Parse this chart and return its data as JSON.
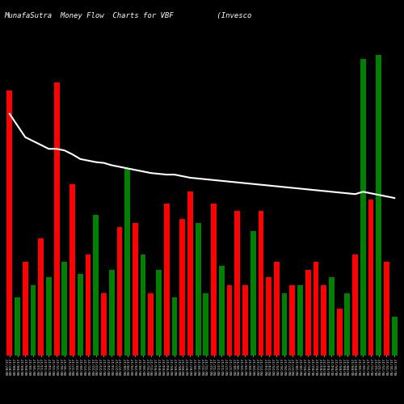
{
  "title": "MunafaSutra  Money Flow  Charts for VBF          (Invesco                                         #",
  "background_color": "#000000",
  "text_color": "#ffffff",
  "bar_width": 0.7,
  "line_color": "#ffffff",
  "categories": [
    "03/07/17\n03/07/17",
    "03/08/17\n03/08/17",
    "03/09/17\n03/09/17",
    "03/10/17\n03/10/17",
    "03/13/17\n03/13/17",
    "03/14/17\n03/14/17",
    "03/15/17\n03/15/17",
    "03/16/17\n03/16/17",
    "03/17/17\n03/17/17",
    "03/20/17\n03/20/17",
    "03/21/17\n03/21/17",
    "03/22/17\n03/22/17",
    "03/23/17\n03/23/17",
    "03/24/17\n03/24/17",
    "03/27/17\n03/27/17",
    "03/28/17\n03/28/17",
    "03/29/17\n03/29/17",
    "03/30/17\n03/30/17",
    "03/31/17\n03/31/17",
    "04/03/17\n04/03/17",
    "04/04/17\n04/04/17",
    "04/05/17\n04/05/17",
    "04/06/17\n04/06/17",
    "04/07/17\n04/07/17",
    "04/10/17\n04/10/17",
    "04/11/17\n04/11/17",
    "04/12/17\n04/12/17",
    "04/13/17\n04/13/17",
    "04/17/17\n04/17/17",
    "04/18/17\n04/18/17",
    "04/19/17\n04/19/17",
    "04/20/17\n04/20/17",
    "04/21/17\n04/21/17",
    "04/24/17\n04/24/17",
    "04/25/17\n04/25/17",
    "04/26/17\n04/26/17",
    "04/27/17\n04/27/17",
    "04/28/17\n04/28/17",
    "05/01/17\n05/01/17",
    "05/02/17\n05/02/17",
    "05/03/17\n05/03/17",
    "05/04/17\n05/04/17",
    "05/05/17\n05/05/17",
    "05/08/17\n05/08/17",
    "05/09/17\n05/09/17",
    "05/10/17\n05/10/17",
    "05/11/17\n05/11/17",
    "05/12/17\n05/12/17",
    "05/15/17\n05/15/17",
    "05/16/17\n05/16/17"
  ],
  "bar_heights": [
    340,
    75,
    120,
    90,
    150,
    100,
    350,
    120,
    220,
    105,
    130,
    180,
    80,
    110,
    165,
    240,
    170,
    130,
    80,
    110,
    195,
    75,
    175,
    210,
    170,
    80,
    195,
    115,
    90,
    185,
    90,
    160,
    185,
    100,
    120,
    80,
    90,
    90,
    110,
    120,
    90,
    100,
    60,
    80,
    130,
    380,
    200,
    385,
    120,
    50
  ],
  "colors": [
    "red",
    "green",
    "red",
    "green",
    "red",
    "green",
    "red",
    "green",
    "red",
    "green",
    "red",
    "green",
    "red",
    "green",
    "red",
    "green",
    "red",
    "green",
    "red",
    "green",
    "red",
    "green",
    "red",
    "red",
    "green",
    "green",
    "red",
    "green",
    "red",
    "red",
    "red",
    "green",
    "red",
    "red",
    "red",
    "green",
    "red",
    "green",
    "red",
    "red",
    "red",
    "green",
    "red",
    "green",
    "red",
    "green",
    "red",
    "green",
    "red",
    "green"
  ],
  "line_values": [
    310,
    295,
    280,
    275,
    270,
    265,
    265,
    263,
    258,
    252,
    250,
    248,
    247,
    244,
    242,
    240,
    238,
    236,
    234,
    233,
    232,
    232,
    230,
    228,
    227,
    226,
    225,
    224,
    223,
    222,
    221,
    220,
    219,
    218,
    217,
    216,
    215,
    214,
    213,
    212,
    211,
    210,
    209,
    208,
    207,
    210,
    208,
    206,
    204,
    202
  ],
  "ylim_max": 430,
  "n": 50
}
